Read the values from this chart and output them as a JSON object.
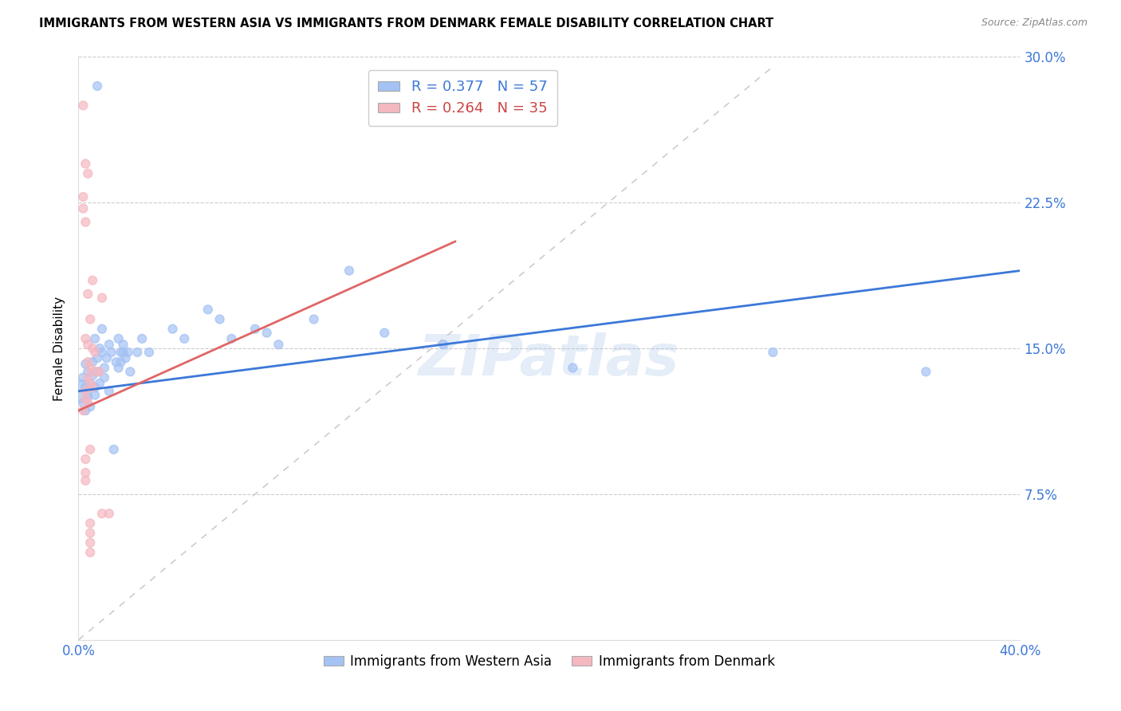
{
  "title": "IMMIGRANTS FROM WESTERN ASIA VS IMMIGRANTS FROM DENMARK FEMALE DISABILITY CORRELATION CHART",
  "source": "Source: ZipAtlas.com",
  "ylabel": "Female Disability",
  "xlim": [
    0.0,
    0.4
  ],
  "ylim": [
    0.0,
    0.3
  ],
  "color_blue": "#a4c2f4",
  "color_pink": "#f4b8c1",
  "trend_blue": "#3c78d8",
  "trend_pink": "#e06666",
  "trend_diagonal": "#cccccc",
  "R_blue": 0.377,
  "N_blue": 57,
  "R_pink": 0.264,
  "N_pink": 35,
  "legend_label_blue": "Immigrants from Western Asia",
  "legend_label_pink": "Immigrants from Denmark",
  "watermark": "ZIPatlas",
  "blue_trend": [
    0.0,
    0.128,
    0.4,
    0.19
  ],
  "pink_trend": [
    0.0,
    0.118,
    0.16,
    0.205
  ],
  "diag_line": [
    0.0,
    0.0,
    0.295,
    0.295
  ],
  "blue_points": [
    [
      0.001,
      0.128,
      400
    ],
    [
      0.002,
      0.135,
      60
    ],
    [
      0.002,
      0.122,
      60
    ],
    [
      0.003,
      0.13,
      60
    ],
    [
      0.003,
      0.118,
      60
    ],
    [
      0.003,
      0.142,
      60
    ],
    [
      0.004,
      0.138,
      60
    ],
    [
      0.004,
      0.125,
      60
    ],
    [
      0.005,
      0.132,
      60
    ],
    [
      0.005,
      0.12,
      60
    ],
    [
      0.006,
      0.143,
      60
    ],
    [
      0.006,
      0.136,
      60
    ],
    [
      0.007,
      0.155,
      60
    ],
    [
      0.007,
      0.13,
      60
    ],
    [
      0.007,
      0.126,
      60
    ],
    [
      0.008,
      0.145,
      60
    ],
    [
      0.008,
      0.138,
      60
    ],
    [
      0.009,
      0.15,
      60
    ],
    [
      0.009,
      0.132,
      60
    ],
    [
      0.01,
      0.148,
      60
    ],
    [
      0.01,
      0.16,
      60
    ],
    [
      0.011,
      0.14,
      60
    ],
    [
      0.011,
      0.135,
      60
    ],
    [
      0.012,
      0.145,
      60
    ],
    [
      0.013,
      0.152,
      60
    ],
    [
      0.013,
      0.128,
      60
    ],
    [
      0.014,
      0.148,
      60
    ],
    [
      0.015,
      0.098,
      60
    ],
    [
      0.016,
      0.143,
      60
    ],
    [
      0.017,
      0.155,
      60
    ],
    [
      0.017,
      0.14,
      60
    ],
    [
      0.018,
      0.148,
      60
    ],
    [
      0.018,
      0.143,
      60
    ],
    [
      0.019,
      0.148,
      60
    ],
    [
      0.019,
      0.152,
      60
    ],
    [
      0.02,
      0.145,
      60
    ],
    [
      0.021,
      0.148,
      60
    ],
    [
      0.022,
      0.138,
      60
    ],
    [
      0.025,
      0.148,
      60
    ],
    [
      0.027,
      0.155,
      60
    ],
    [
      0.03,
      0.148,
      60
    ],
    [
      0.04,
      0.16,
      60
    ],
    [
      0.045,
      0.155,
      60
    ],
    [
      0.055,
      0.17,
      60
    ],
    [
      0.06,
      0.165,
      60
    ],
    [
      0.065,
      0.155,
      60
    ],
    [
      0.075,
      0.16,
      60
    ],
    [
      0.08,
      0.158,
      60
    ],
    [
      0.085,
      0.152,
      60
    ],
    [
      0.1,
      0.165,
      60
    ],
    [
      0.115,
      0.19,
      60
    ],
    [
      0.13,
      0.158,
      60
    ],
    [
      0.155,
      0.152,
      60
    ],
    [
      0.21,
      0.14,
      60
    ],
    [
      0.295,
      0.148,
      60
    ],
    [
      0.36,
      0.138,
      60
    ],
    [
      0.008,
      0.285,
      60
    ]
  ],
  "pink_points": [
    [
      0.002,
      0.275,
      60
    ],
    [
      0.003,
      0.245,
      60
    ],
    [
      0.004,
      0.24,
      60
    ],
    [
      0.002,
      0.228,
      60
    ],
    [
      0.002,
      0.222,
      60
    ],
    [
      0.003,
      0.215,
      60
    ],
    [
      0.004,
      0.178,
      60
    ],
    [
      0.006,
      0.185,
      60
    ],
    [
      0.01,
      0.176,
      60
    ],
    [
      0.005,
      0.165,
      60
    ],
    [
      0.003,
      0.155,
      60
    ],
    [
      0.004,
      0.152,
      60
    ],
    [
      0.006,
      0.15,
      60
    ],
    [
      0.007,
      0.148,
      60
    ],
    [
      0.004,
      0.143,
      60
    ],
    [
      0.005,
      0.14,
      60
    ],
    [
      0.007,
      0.138,
      60
    ],
    [
      0.009,
      0.138,
      60
    ],
    [
      0.004,
      0.135,
      60
    ],
    [
      0.005,
      0.132,
      60
    ],
    [
      0.006,
      0.13,
      60
    ],
    [
      0.003,
      0.128,
      60
    ],
    [
      0.003,
      0.124,
      60
    ],
    [
      0.004,
      0.122,
      60
    ],
    [
      0.002,
      0.118,
      60
    ],
    [
      0.005,
      0.098,
      60
    ],
    [
      0.003,
      0.093,
      60
    ],
    [
      0.003,
      0.086,
      60
    ],
    [
      0.003,
      0.082,
      60
    ],
    [
      0.01,
      0.065,
      60
    ],
    [
      0.005,
      0.06,
      60
    ],
    [
      0.005,
      0.055,
      60
    ],
    [
      0.005,
      0.05,
      60
    ],
    [
      0.005,
      0.045,
      60
    ],
    [
      0.013,
      0.065,
      60
    ]
  ]
}
